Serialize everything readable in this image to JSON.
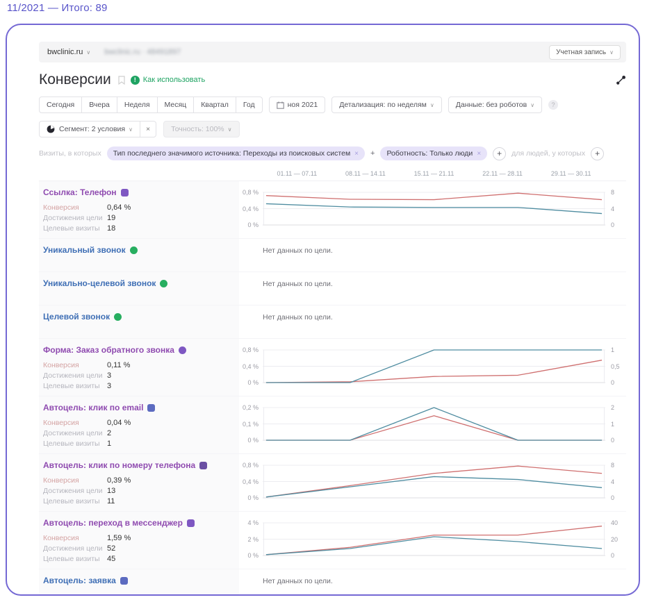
{
  "page": {
    "header_label": "11/2021 — Итого: 89",
    "accent_color": "#7468d4"
  },
  "topbar": {
    "counter_name": "bwclinic.ru",
    "counter_ghost": "bwclinic.ru · 48491897",
    "account_label": "Учетная запись"
  },
  "title": {
    "text": "Конверсии",
    "help_link": "Как использовать"
  },
  "toolbar": {
    "periods": [
      "Сегодня",
      "Вчера",
      "Неделя",
      "Месяц",
      "Квартал",
      "Год"
    ],
    "date_label": "ноя 2021",
    "detail_label": "Детализация: по неделям",
    "data_label": "Данные: без роботов"
  },
  "segment": {
    "segment_label": "Сегмент: 2 условия",
    "clear_label": "×",
    "accuracy_label": "Точность: 100%"
  },
  "filters": {
    "visits_label": "Визиты, в которых",
    "chips": [
      "Тип последнего значимого источника: Переходы из поисковых систем",
      "Роботность: Только люди"
    ],
    "add_label": "+",
    "people_label": "для людей, у которых"
  },
  "table": {
    "date_columns": [
      "01.11 — 07.11",
      "08.11 — 14.11",
      "15.11 — 21.11",
      "22.11 — 28.11",
      "29.11 — 30.11"
    ],
    "metric_labels": [
      "Конверсия",
      "Достижения цели",
      "Целевые визиты"
    ],
    "no_data_text": "Нет данных по цели."
  },
  "colors": {
    "conversion_line": "#cf6f6f",
    "reaches_line": "#4e8ca0"
  },
  "goals": [
    {
      "title": "Ссылка: Телефон",
      "icon": "phone-link-goal-icon",
      "icon_color": "#7e57c2",
      "title_color": "#8f4bb0",
      "metrics": [
        "0,64 %",
        "19",
        "18"
      ],
      "chart": 0
    },
    {
      "title": "Уникальный звонок",
      "icon": "unique-call-goal-icon",
      "icon_color": "#27ae60",
      "title_color": "#3f6fb5",
      "metrics": null,
      "chart": null
    },
    {
      "title": "Уникально-целевой звонок",
      "icon": "unique-target-call-goal-icon",
      "icon_color": "#27ae60",
      "title_color": "#3f6fb5",
      "metrics": null,
      "chart": null
    },
    {
      "title": "Целевой звонок",
      "icon": "target-call-goal-icon",
      "icon_color": "#27ae60",
      "title_color": "#3f6fb5",
      "metrics": null,
      "chart": null
    },
    {
      "title": "Форма: Заказ обратного звонка",
      "icon": "callback-form-goal-icon",
      "icon_color": "#7e57c2",
      "title_color": "#8f4bb0",
      "metrics": [
        "0,11 %",
        "3",
        "3"
      ],
      "chart": 1
    },
    {
      "title": "Автоцель: клик по email",
      "icon": "email-click-goal-icon",
      "icon_color": "#5c6bc0",
      "title_color": "#8f4bb0",
      "metrics": [
        "0,04 %",
        "2",
        "1"
      ],
      "chart": 2
    },
    {
      "title": "Автоцель: клик по номеру телефона",
      "icon": "phone-click-goal-icon",
      "icon_color": "#6a4fa3",
      "title_color": "#8f4bb0",
      "metrics": [
        "0,39 %",
        "13",
        "11"
      ],
      "chart": 3
    },
    {
      "title": "Автоцель: переход в мессенджер",
      "icon": "messenger-goal-icon",
      "icon_color": "#7e57c2",
      "title_color": "#8f4bb0",
      "metrics": [
        "1,59 %",
        "52",
        "45"
      ],
      "chart": 4
    },
    {
      "title": "Автоцель: заявка",
      "icon": "request-goal-icon",
      "icon_color": "#5c6bc0",
      "title_color": "#3f6fb5",
      "metrics": null,
      "chart": null
    }
  ],
  "chart_data": [
    {
      "type": "line",
      "goal": "Ссылка: Телефон",
      "x": [
        "01.11 — 07.11",
        "08.11 — 14.11",
        "15.11 — 21.11",
        "22.11 — 28.11",
        "29.11 — 30.11"
      ],
      "left_ticks": [
        "0,8 %",
        "0,4 %",
        "0 %"
      ],
      "right_ticks": [
        "8",
        "4",
        "0"
      ],
      "ylim_left": [
        0,
        0.8
      ],
      "ylim_right": [
        0,
        8
      ],
      "grid": true,
      "legend": "none",
      "series": [
        {
          "name": "Конверсия, %",
          "axis": "left",
          "color": "#cf6f6f",
          "values": [
            0.72,
            0.63,
            0.62,
            0.78,
            0.62
          ]
        },
        {
          "name": "Достижения цели",
          "axis": "right",
          "color": "#4e8ca0",
          "values": [
            5.2,
            4.4,
            4.3,
            4.3,
            2.8
          ]
        }
      ]
    },
    {
      "type": "line",
      "goal": "Форма: Заказ обратного звонка",
      "x": [
        "01.11 — 07.11",
        "08.11 — 14.11",
        "15.11 — 21.11",
        "22.11 — 28.11",
        "29.11 — 30.11"
      ],
      "left_ticks": [
        "0,8 %",
        "0,4 %",
        "0 %"
      ],
      "right_ticks": [
        "1",
        "0,5",
        "0"
      ],
      "ylim_left": [
        0,
        0.8
      ],
      "ylim_right": [
        0,
        1
      ],
      "grid": true,
      "legend": "none",
      "series": [
        {
          "name": "Конверсия, %",
          "axis": "left",
          "color": "#cf6f6f",
          "values": [
            0,
            0.02,
            0.15,
            0.18,
            0.55
          ]
        },
        {
          "name": "Достижения цели",
          "axis": "right",
          "color": "#4e8ca0",
          "values": [
            0,
            0,
            1,
            1,
            1
          ]
        }
      ]
    },
    {
      "type": "line",
      "goal": "Автоцель: клик по email",
      "x": [
        "01.11 — 07.11",
        "08.11 — 14.11",
        "15.11 — 21.11",
        "22.11 — 28.11",
        "29.11 — 30.11"
      ],
      "left_ticks": [
        "0,2 %",
        "0,1 %",
        "0 %"
      ],
      "right_ticks": [
        "2",
        "1",
        "0"
      ],
      "ylim_left": [
        0,
        0.2
      ],
      "ylim_right": [
        0,
        2
      ],
      "grid": true,
      "legend": "none",
      "series": [
        {
          "name": "Конверсия, %",
          "axis": "left",
          "color": "#cf6f6f",
          "values": [
            0,
            0,
            0.15,
            0,
            0
          ]
        },
        {
          "name": "Достижения цели",
          "axis": "right",
          "color": "#4e8ca0",
          "values": [
            0,
            0,
            2,
            0,
            0
          ]
        }
      ]
    },
    {
      "type": "line",
      "goal": "Автоцель: клик по номеру телефона",
      "x": [
        "01.11 — 07.11",
        "08.11 — 14.11",
        "15.11 — 21.11",
        "22.11 — 28.11",
        "29.11 — 30.11"
      ],
      "left_ticks": [
        "0,8 %",
        "0,4 %",
        "0 %"
      ],
      "right_ticks": [
        "8",
        "4",
        "0"
      ],
      "ylim_left": [
        0,
        0.8
      ],
      "ylim_right": [
        0,
        8
      ],
      "grid": true,
      "legend": "none",
      "series": [
        {
          "name": "Конверсия, %",
          "axis": "left",
          "color": "#cf6f6f",
          "values": [
            0.02,
            0.3,
            0.6,
            0.78,
            0.6
          ]
        },
        {
          "name": "Достижения цели",
          "axis": "right",
          "color": "#4e8ca0",
          "values": [
            0.2,
            2.7,
            5.2,
            4.5,
            2.5
          ]
        }
      ]
    },
    {
      "type": "line",
      "goal": "Автоцель: переход в мессенджер",
      "x": [
        "01.11 — 07.11",
        "08.11 — 14.11",
        "15.11 — 21.11",
        "22.11 — 28.11",
        "29.11 — 30.11"
      ],
      "left_ticks": [
        "4 %",
        "2 %",
        "0 %"
      ],
      "right_ticks": [
        "40",
        "20",
        "0"
      ],
      "ylim_left": [
        0,
        4
      ],
      "ylim_right": [
        0,
        40
      ],
      "grid": true,
      "legend": "none",
      "series": [
        {
          "name": "Конверсия, %",
          "axis": "left",
          "color": "#cf6f6f",
          "values": [
            0.1,
            1.0,
            2.5,
            2.5,
            3.6
          ]
        },
        {
          "name": "Достижения цели",
          "axis": "right",
          "color": "#4e8ca0",
          "values": [
            1,
            8.5,
            23,
            17,
            8.5
          ]
        }
      ]
    }
  ]
}
